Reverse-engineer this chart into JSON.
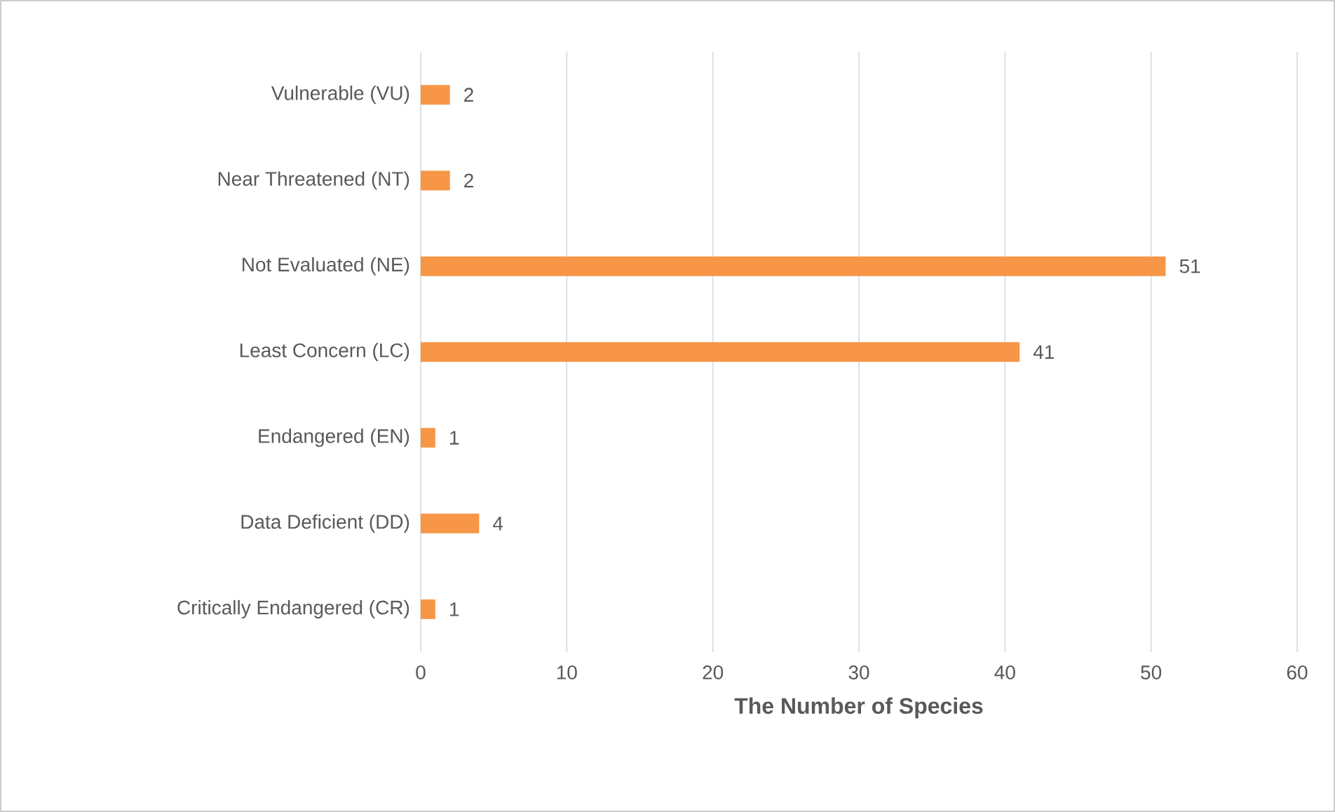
{
  "chart_data": {
    "type": "bar",
    "orientation": "horizontal",
    "categories": [
      "Vulnerable (VU)",
      "Near Threatened (NT)",
      "Not Evaluated (NE)",
      "Least Concern (LC)",
      "Endangered (EN)",
      "Data Deficient (DD)",
      "Critically Endangered (CR)"
    ],
    "values": [
      2,
      2,
      51,
      41,
      1,
      4,
      1
    ],
    "color": "#f79646",
    "xlim": [
      0,
      60
    ],
    "xticks": [
      0,
      10,
      20,
      30,
      40,
      50,
      60
    ],
    "xlabel": "**The Number of Species**",
    "grid": "x",
    "data_labels": true
  }
}
